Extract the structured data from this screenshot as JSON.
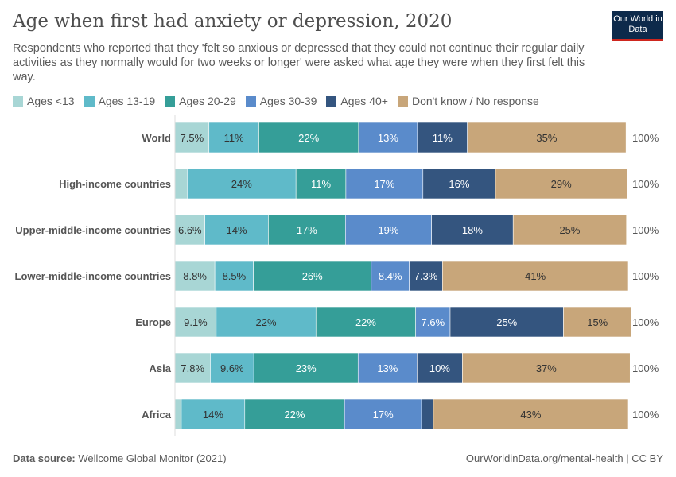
{
  "header": {
    "title": "Age when first had anxiety or depression, 2020",
    "subtitle": "Respondents who reported that they 'felt so anxious or depressed that they could not continue their regular daily activities as they normally would for two weeks or longer' were asked what age they were when they first felt this way.",
    "logo": "Our World in Data"
  },
  "footer": {
    "source_label": "Data source:",
    "source": "Wellcome Global Monitor (2021)",
    "url": "OurWorldinData.org/mental-health | CC BY"
  },
  "chart_data": {
    "type": "bar",
    "orientation": "horizontal",
    "stacked": true,
    "title": "Age when first had anxiety or depression, 2020",
    "legend_position": "top",
    "series": [
      {
        "name": "Ages <13",
        "color": "#a8d6d5",
        "text_color": "#333333",
        "values": [
          7.5,
          2.7,
          6.6,
          8.8,
          9.1,
          7.8,
          1.4
        ]
      },
      {
        "name": "Ages 13-19",
        "color": "#5fbac9",
        "text_color": "#333333",
        "values": [
          11,
          24,
          14,
          8.5,
          22,
          9.6,
          14
        ]
      },
      {
        "name": "Ages 20-29",
        "color": "#359e98",
        "text_color": "#ffffff",
        "values": [
          22,
          11,
          17,
          26,
          22,
          23,
          22
        ]
      },
      {
        "name": "Ages 30-39",
        "color": "#5a8bcb",
        "text_color": "#ffffff",
        "values": [
          13,
          17,
          19,
          8.4,
          7.6,
          13,
          17
        ]
      },
      {
        "name": "Ages 40+",
        "color": "#34557f",
        "text_color": "#ffffff",
        "values": [
          11,
          16,
          18,
          7.3,
          25,
          10,
          2.6
        ]
      },
      {
        "name": "Don't know / No response",
        "color": "#c8a67a",
        "text_color": "#333333",
        "values": [
          35,
          29,
          25,
          41,
          15,
          37,
          43
        ]
      }
    ],
    "categories": [
      "World",
      "High-income countries",
      "Upper-middle-income countries",
      "Lower-middle-income countries",
      "Europe",
      "Asia",
      "Africa"
    ],
    "totals": [
      "100%",
      "100%",
      "100%",
      "100%",
      "100%",
      "100%",
      "100%"
    ],
    "xlim": [
      0,
      100
    ]
  }
}
